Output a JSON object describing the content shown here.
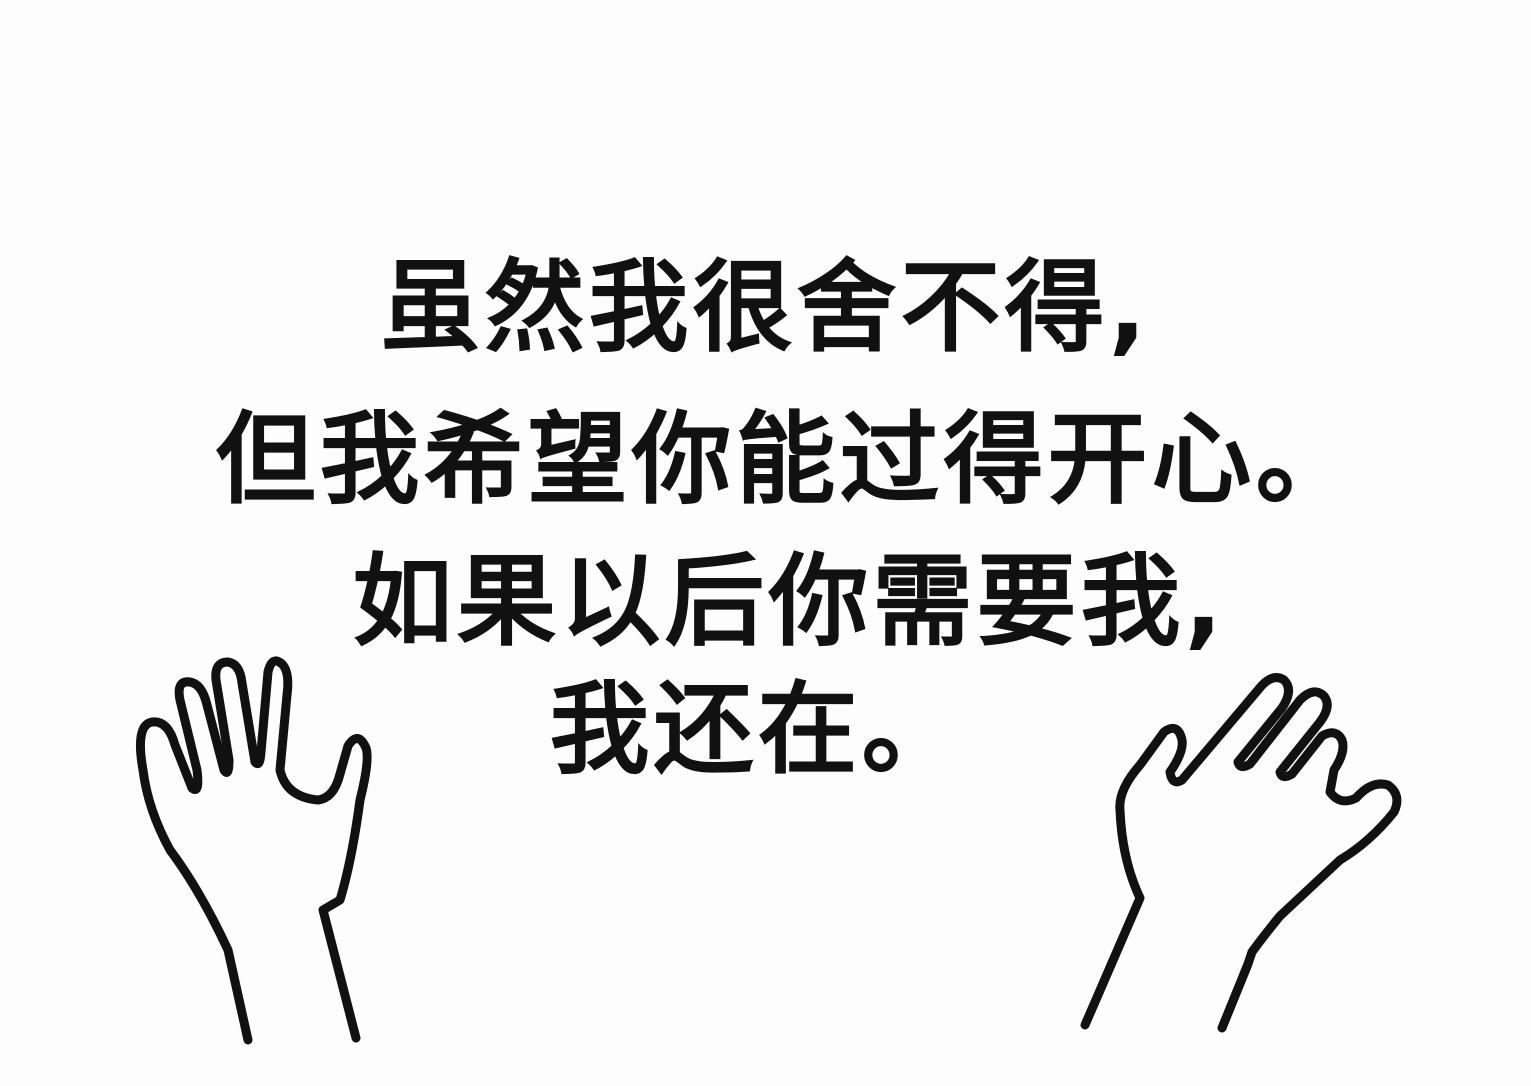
{
  "message": {
    "line1": "虽然我很舍不得,",
    "line2": "但我希望你能过得开心。",
    "line3": "如果以后你需要我,",
    "line4": "我还在。"
  },
  "illustration": {
    "left_icon": "raised-hand-left-icon",
    "right_icon": "raised-hand-right-icon",
    "stroke_color": "#111111",
    "background_color": "#fdfdfd"
  }
}
